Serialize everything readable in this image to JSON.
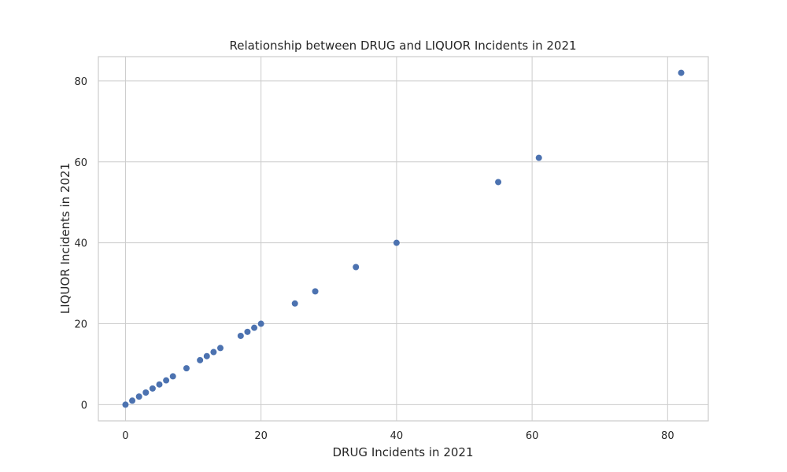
{
  "chart_data": {
    "type": "scatter",
    "title": "Relationship between DRUG and LIQUOR Incidents in 2021",
    "xlabel": "DRUG Incidents in 2021",
    "ylabel": "LIQUOR Incidents in 2021",
    "xlim": [
      -4,
      86
    ],
    "ylim": [
      -4,
      86
    ],
    "xticks": [
      0,
      20,
      40,
      60,
      80
    ],
    "yticks": [
      0,
      20,
      40,
      60,
      80
    ],
    "grid": true,
    "point_color": "#4c72b0",
    "points": [
      {
        "x": 0,
        "y": 0
      },
      {
        "x": 1,
        "y": 1
      },
      {
        "x": 2,
        "y": 2
      },
      {
        "x": 3,
        "y": 3
      },
      {
        "x": 4,
        "y": 4
      },
      {
        "x": 5,
        "y": 5
      },
      {
        "x": 6,
        "y": 6
      },
      {
        "x": 7,
        "y": 7
      },
      {
        "x": 9,
        "y": 9
      },
      {
        "x": 11,
        "y": 11
      },
      {
        "x": 12,
        "y": 12
      },
      {
        "x": 13,
        "y": 13
      },
      {
        "x": 14,
        "y": 14
      },
      {
        "x": 17,
        "y": 17
      },
      {
        "x": 18,
        "y": 18
      },
      {
        "x": 19,
        "y": 19
      },
      {
        "x": 20,
        "y": 20
      },
      {
        "x": 25,
        "y": 25
      },
      {
        "x": 28,
        "y": 28
      },
      {
        "x": 34,
        "y": 34
      },
      {
        "x": 40,
        "y": 40
      },
      {
        "x": 55,
        "y": 55
      },
      {
        "x": 61,
        "y": 61
      },
      {
        "x": 82,
        "y": 82
      }
    ]
  }
}
